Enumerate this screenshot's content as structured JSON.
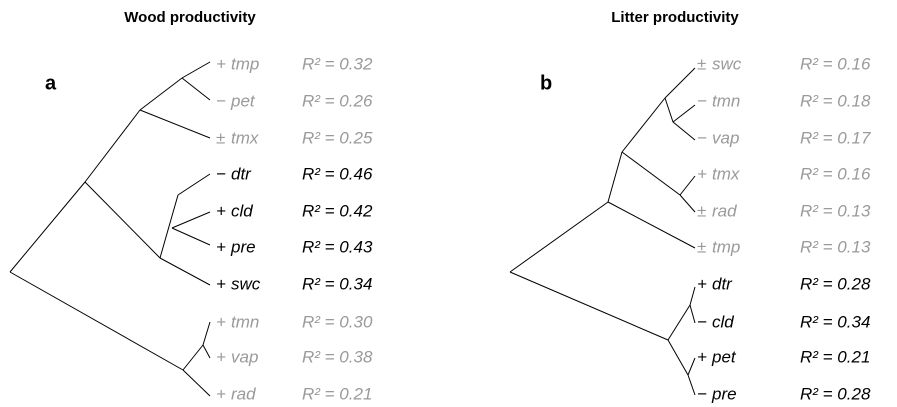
{
  "panels": [
    {
      "title": "Wood productivity",
      "label": "a",
      "leaves": [
        {
          "sign": "+",
          "name": "tmp",
          "r2": "R² = 0.32",
          "color": "#9a9a9a"
        },
        {
          "sign": "−",
          "name": "pet",
          "r2": "R² = 0.26",
          "color": "#9a9a9a"
        },
        {
          "sign": "±",
          "name": "tmx",
          "r2": "R² = 0.25",
          "color": "#9a9a9a"
        },
        {
          "sign": "−",
          "name": "dtr",
          "r2": "R² = 0.46",
          "color": "#000000"
        },
        {
          "sign": "+",
          "name": "cld",
          "r2": "R² = 0.42",
          "color": "#000000"
        },
        {
          "sign": "+",
          "name": "pre",
          "r2": "R² = 0.43",
          "color": "#000000"
        },
        {
          "sign": "+",
          "name": "swc",
          "r2": "R² = 0.34",
          "color": "#000000"
        },
        {
          "sign": "+",
          "name": "tmn",
          "r2": "R² = 0.30",
          "color": "#9a9a9a"
        },
        {
          "sign": "+",
          "name": "vap",
          "r2": "R² = 0.38",
          "color": "#9a9a9a"
        },
        {
          "sign": "+",
          "name": "rad",
          "r2": "R² = 0.21",
          "color": "#9a9a9a"
        }
      ]
    },
    {
      "title": "Litter productivity",
      "label": "b",
      "leaves": [
        {
          "sign": "±",
          "name": "swc",
          "r2": "R² = 0.16",
          "color": "#9a9a9a"
        },
        {
          "sign": "−",
          "name": "tmn",
          "r2": "R² = 0.18",
          "color": "#9a9a9a"
        },
        {
          "sign": "−",
          "name": "vap",
          "r2": "R² = 0.17",
          "color": "#9a9a9a"
        },
        {
          "sign": "+",
          "name": "tmx",
          "r2": "R² = 0.16",
          "color": "#9a9a9a"
        },
        {
          "sign": "±",
          "name": "rad",
          "r2": "R² = 0.13",
          "color": "#9a9a9a"
        },
        {
          "sign": "±",
          "name": "tmp",
          "r2": "R² = 0.13",
          "color": "#9a9a9a"
        },
        {
          "sign": "+",
          "name": "dtr",
          "r2": "R² = 0.28",
          "color": "#000000"
        },
        {
          "sign": "−",
          "name": "cld",
          "r2": "R² = 0.34",
          "color": "#000000"
        },
        {
          "sign": "+",
          "name": "pet",
          "r2": "R² = 0.21",
          "color": "#000000"
        },
        {
          "sign": "−",
          "name": "pre",
          "r2": "R² = 0.28",
          "color": "#000000"
        }
      ]
    }
  ]
}
